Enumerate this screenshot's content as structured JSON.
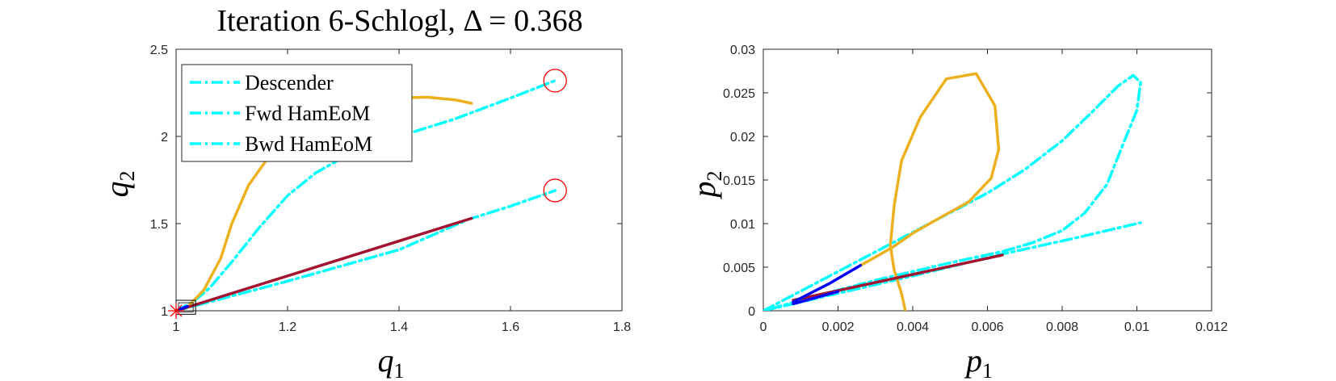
{
  "figure": {
    "title": "Iteration 6-Schlogl, Δ = 0.368"
  },
  "colors": {
    "descender": "#00ffff",
    "orange": "#edb120",
    "darkred": "#a2142f",
    "blue": "#0000ff",
    "red": "#ff0000",
    "axes": "#262626"
  },
  "chart_data": [
    {
      "type": "line",
      "title": "Iteration 6-Schlogl, Δ = 0.368",
      "xlabel": "q",
      "xlabel_sub": "1",
      "ylabel": "q",
      "ylabel_sub": "2",
      "xlim": [
        1,
        1.8
      ],
      "ylim": [
        1,
        2.5
      ],
      "xticks": [
        1,
        1.2,
        1.4,
        1.6,
        1.8
      ],
      "xtick_labels": [
        "1",
        "1.2",
        "1.4",
        "1.6",
        "1.8"
      ],
      "yticks": [
        1,
        1.5,
        2,
        2.5
      ],
      "ytick_labels": [
        "1",
        "1.5",
        "2",
        "2.5"
      ],
      "legend": {
        "position": "top-left",
        "entries": [
          "Descender",
          "Fwd HamEoM",
          "Bwd HamEoM"
        ]
      },
      "series": [
        {
          "name": "Descender",
          "color": "#00ffff",
          "style": "dashdot",
          "x": [
            1.0,
            1.03,
            1.06,
            1.1,
            1.15,
            1.2,
            1.25,
            1.3,
            1.35,
            1.4,
            1.5,
            1.6,
            1.68
          ],
          "y": [
            1.0,
            1.05,
            1.13,
            1.28,
            1.48,
            1.66,
            1.79,
            1.88,
            1.95,
            2.0,
            2.1,
            2.22,
            2.32
          ]
        },
        {
          "name": "Fwd HamEoM",
          "color": "#00ffff",
          "style": "dashdot",
          "x": [
            1.0,
            1.2,
            1.4,
            1.525,
            1.6,
            1.68
          ],
          "y": [
            1.0,
            1.17,
            1.35,
            1.525,
            1.6,
            1.69
          ]
        },
        {
          "color": "#edb120",
          "style": "solid",
          "x": [
            1.02,
            1.05,
            1.08,
            1.1,
            1.13,
            1.17,
            1.22,
            1.28,
            1.34,
            1.4,
            1.45,
            1.5,
            1.53
          ],
          "y": [
            1.02,
            1.12,
            1.3,
            1.5,
            1.72,
            1.9,
            2.05,
            2.15,
            2.2,
            2.22,
            2.225,
            2.21,
            2.19
          ]
        },
        {
          "color": "#a2142f",
          "style": "solid",
          "x": [
            1.0,
            1.53
          ],
          "y": [
            1.0,
            1.53
          ]
        },
        {
          "color": "#0000ff",
          "style": "solid",
          "x": [
            1.0,
            1.02
          ],
          "y": [
            1.0,
            1.025
          ]
        }
      ],
      "markers": {
        "circles": [
          {
            "x": 1.68,
            "y": 2.32
          },
          {
            "x": 1.68,
            "y": 1.69
          }
        ],
        "star": {
          "x": 1.0,
          "y": 1.0
        },
        "box": {
          "x": [
            1.0,
            1.035
          ],
          "y": [
            0.98,
            1.06
          ]
        }
      }
    },
    {
      "type": "line",
      "xlabel": "p",
      "xlabel_sub": "1",
      "ylabel": "p",
      "ylabel_sub": "2",
      "xlim": [
        0,
        0.012
      ],
      "ylim": [
        0,
        0.03
      ],
      "xticks": [
        0,
        0.002,
        0.004,
        0.006,
        0.008,
        0.01,
        0.012
      ],
      "xtick_labels": [
        "0",
        "0.002",
        "0.004",
        "0.006",
        "0.008",
        "0.01",
        "0.012"
      ],
      "yticks": [
        0,
        0.005,
        0.01,
        0.015,
        0.02,
        0.025,
        0.03
      ],
      "ytick_labels": [
        "0",
        "0.005",
        "0.01",
        "0.015",
        "0.02",
        "0.025",
        "0.03"
      ],
      "series": [
        {
          "color": "#00ffff",
          "style": "dashdot",
          "x": [
            0.0,
            0.002,
            0.004,
            0.006,
            0.007,
            0.008,
            0.0088,
            0.0095,
            0.0099,
            0.0101,
            0.01,
            0.0096,
            0.0092,
            0.0086,
            0.008,
            0.0072,
            0.0064,
            0.005,
            0.003,
            0.0015,
            0.0
          ],
          "y": [
            0.0,
            0.0045,
            0.009,
            0.0135,
            0.0162,
            0.0195,
            0.0228,
            0.0258,
            0.027,
            0.0262,
            0.023,
            0.0188,
            0.0145,
            0.0112,
            0.0092,
            0.0078,
            0.0068,
            0.0055,
            0.0035,
            0.0018,
            0.0
          ]
        },
        {
          "color": "#00ffff",
          "style": "dashdot",
          "x": [
            0.0,
            0.002,
            0.004,
            0.0064,
            0.0083,
            0.0101
          ],
          "y": [
            0.0,
            0.002,
            0.004,
            0.0065,
            0.0083,
            0.0101
          ]
        },
        {
          "color": "#edb120",
          "style": "solid",
          "x": [
            0.0026,
            0.0031,
            0.0035,
            0.004,
            0.0047,
            0.0055,
            0.0061,
            0.0063,
            0.0062,
            0.0057,
            0.0049,
            0.0042,
            0.0037,
            0.0035,
            0.0034,
            0.0035,
            0.0037,
            0.0038
          ],
          "y": [
            0.0052,
            0.0064,
            0.0074,
            0.0089,
            0.0106,
            0.0125,
            0.0152,
            0.0185,
            0.0235,
            0.0272,
            0.0266,
            0.0222,
            0.0172,
            0.012,
            0.0075,
            0.0047,
            0.002,
            0.0
          ]
        },
        {
          "color": "#a2142f",
          "style": "solid",
          "x": [
            0.0008,
            0.0064
          ],
          "y": [
            0.0012,
            0.0064
          ]
        },
        {
          "color": "#0000ff",
          "style": "solid",
          "x": [
            0.0008,
            0.0018,
            0.0026
          ],
          "y": [
            0.001,
            0.0032,
            0.0052
          ]
        },
        {
          "color": "#0000ff",
          "style": "solid",
          "x": [
            0.0008,
            0.002
          ],
          "y": [
            0.0008,
            0.0022
          ]
        }
      ]
    }
  ]
}
